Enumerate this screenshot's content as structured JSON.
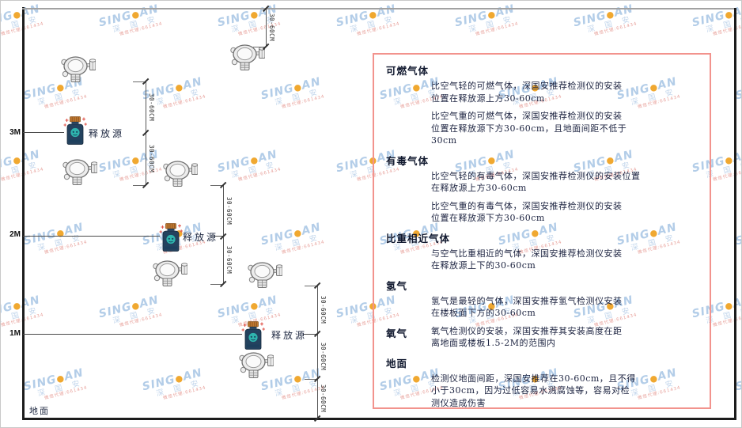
{
  "watermark": {
    "brand_left": "SING",
    "dot": "●",
    "brand_right": "AN",
    "brand_cn": "深 国 安",
    "sub_red": "微信代理:661434"
  },
  "diagram": {
    "height_labels": [
      "3M",
      "2M",
      "1M"
    ],
    "ground_label": "地面",
    "release_source_label": "释放源",
    "dim_label": "30-60CM"
  },
  "panel": {
    "sections": [
      {
        "heading": "可燃气体",
        "paras": [
          "比空气轻的可燃气体，深国安推荐检测仪的安装\n位置在释放源上方30-60cm",
          "比空气重的可燃气体，深国安推荐检测仪的安装\n位置在释放源下方30-60cm，且地面间距不低于\n30cm"
        ]
      },
      {
        "heading": "有毒气体",
        "paras": [
          "比空气轻的有毒气体，深国安推荐检测仪的安装位置\n在释放源上方30-60cm",
          "比空气重的有毒气体，深国安推荐检测仪的安装\n位置在释放源下方30-60cm"
        ]
      },
      {
        "heading": "比重相近气体",
        "paras": [
          "与空气比重相近的气体，深国安推荐检测仪安装\n在释放源上下的30-60cm"
        ]
      },
      {
        "heading": "氢气",
        "paras": [
          "氢气是最轻的气体，深国安推荐氢气检测仪安装\n在楼板面下方的30-60cm"
        ]
      },
      {
        "heading": "氧气",
        "paras": [
          "氧气检测仪的安装，深国安推荐其安装高度在距\n离地面或楼板1.5-2M的范围内"
        ]
      },
      {
        "heading": "地面",
        "paras": [
          "检测仪地面间距，深国安推荐在30-60cm，且不得\n小于30cm，因为过低容易水溅腐蚀等，容易对检\n测仪造成伤害"
        ]
      }
    ]
  }
}
